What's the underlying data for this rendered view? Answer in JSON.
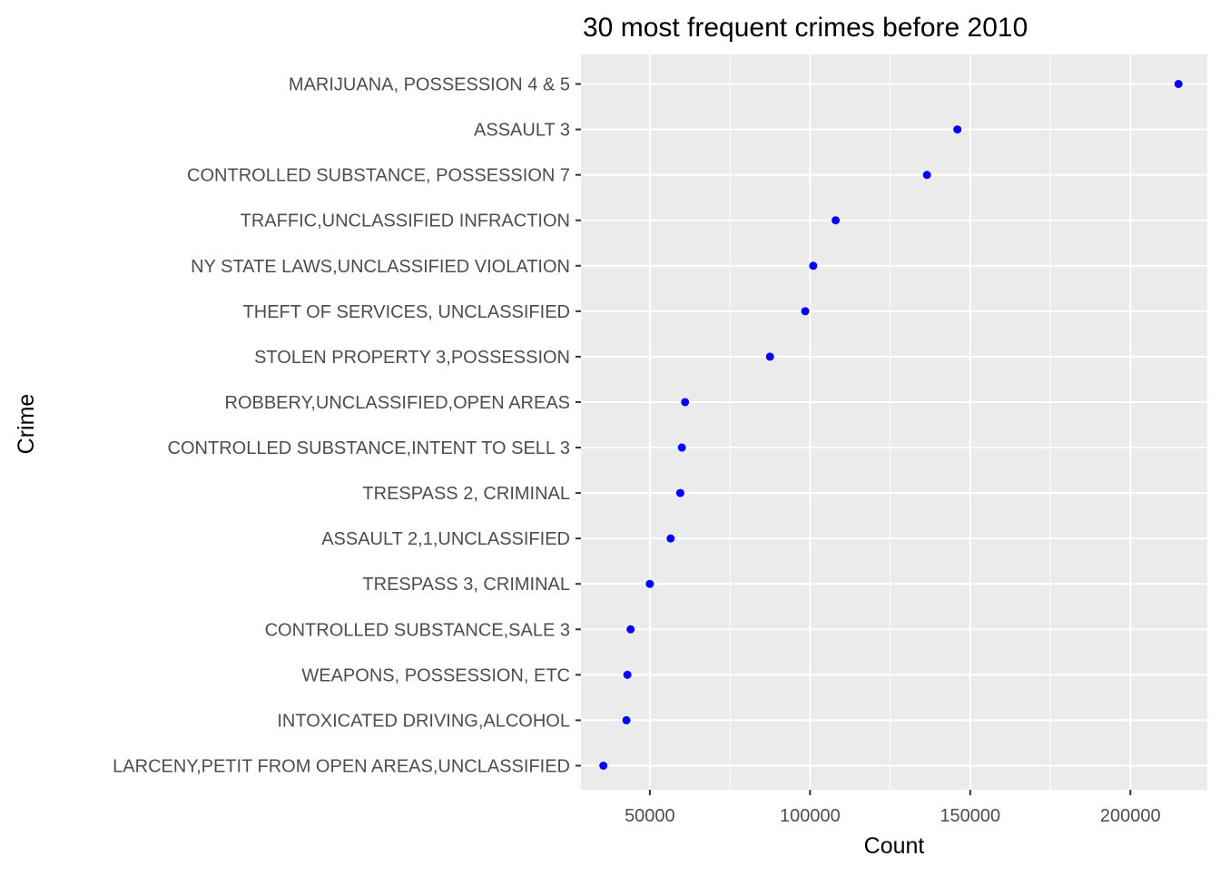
{
  "chart_data": {
    "type": "scatter",
    "title": "30 most frequent crimes before 2010",
    "xlabel": "Count",
    "ylabel": "Crime",
    "xlim": [
      28500,
      224000
    ],
    "x_ticks": [
      50000,
      100000,
      150000,
      200000
    ],
    "x_tick_labels": [
      "50000",
      "100000",
      "150000",
      "200000"
    ],
    "grid": true,
    "legend": "none",
    "point_color": "#0000ff",
    "panel_background": "#ebebeb",
    "gridline_color": "#ffffff",
    "categories": [
      "MARIJUANA, POSSESSION 4 & 5",
      "ASSAULT 3",
      "CONTROLLED SUBSTANCE, POSSESSION 7",
      "TRAFFIC,UNCLASSIFIED INFRACTION",
      "NY STATE LAWS,UNCLASSIFIED VIOLATION",
      "THEFT OF SERVICES, UNCLASSIFIED",
      "STOLEN PROPERTY 3,POSSESSION",
      "ROBBERY,UNCLASSIFIED,OPEN AREAS",
      "CONTROLLED SUBSTANCE,INTENT TO SELL 3",
      "TRESPASS 2, CRIMINAL",
      "ASSAULT 2,1,UNCLASSIFIED",
      "TRESPASS 3, CRIMINAL",
      "CONTROLLED SUBSTANCE,SALE 3",
      "WEAPONS, POSSESSION, ETC",
      "INTOXICATED DRIVING,ALCOHOL",
      "LARCENY,PETIT FROM OPEN AREAS,UNCLASSIFIED"
    ],
    "values": [
      215000,
      146000,
      136500,
      108000,
      101000,
      98500,
      87500,
      61000,
      60000,
      59500,
      56500,
      50000,
      44000,
      43000,
      42700,
      35500
    ]
  }
}
